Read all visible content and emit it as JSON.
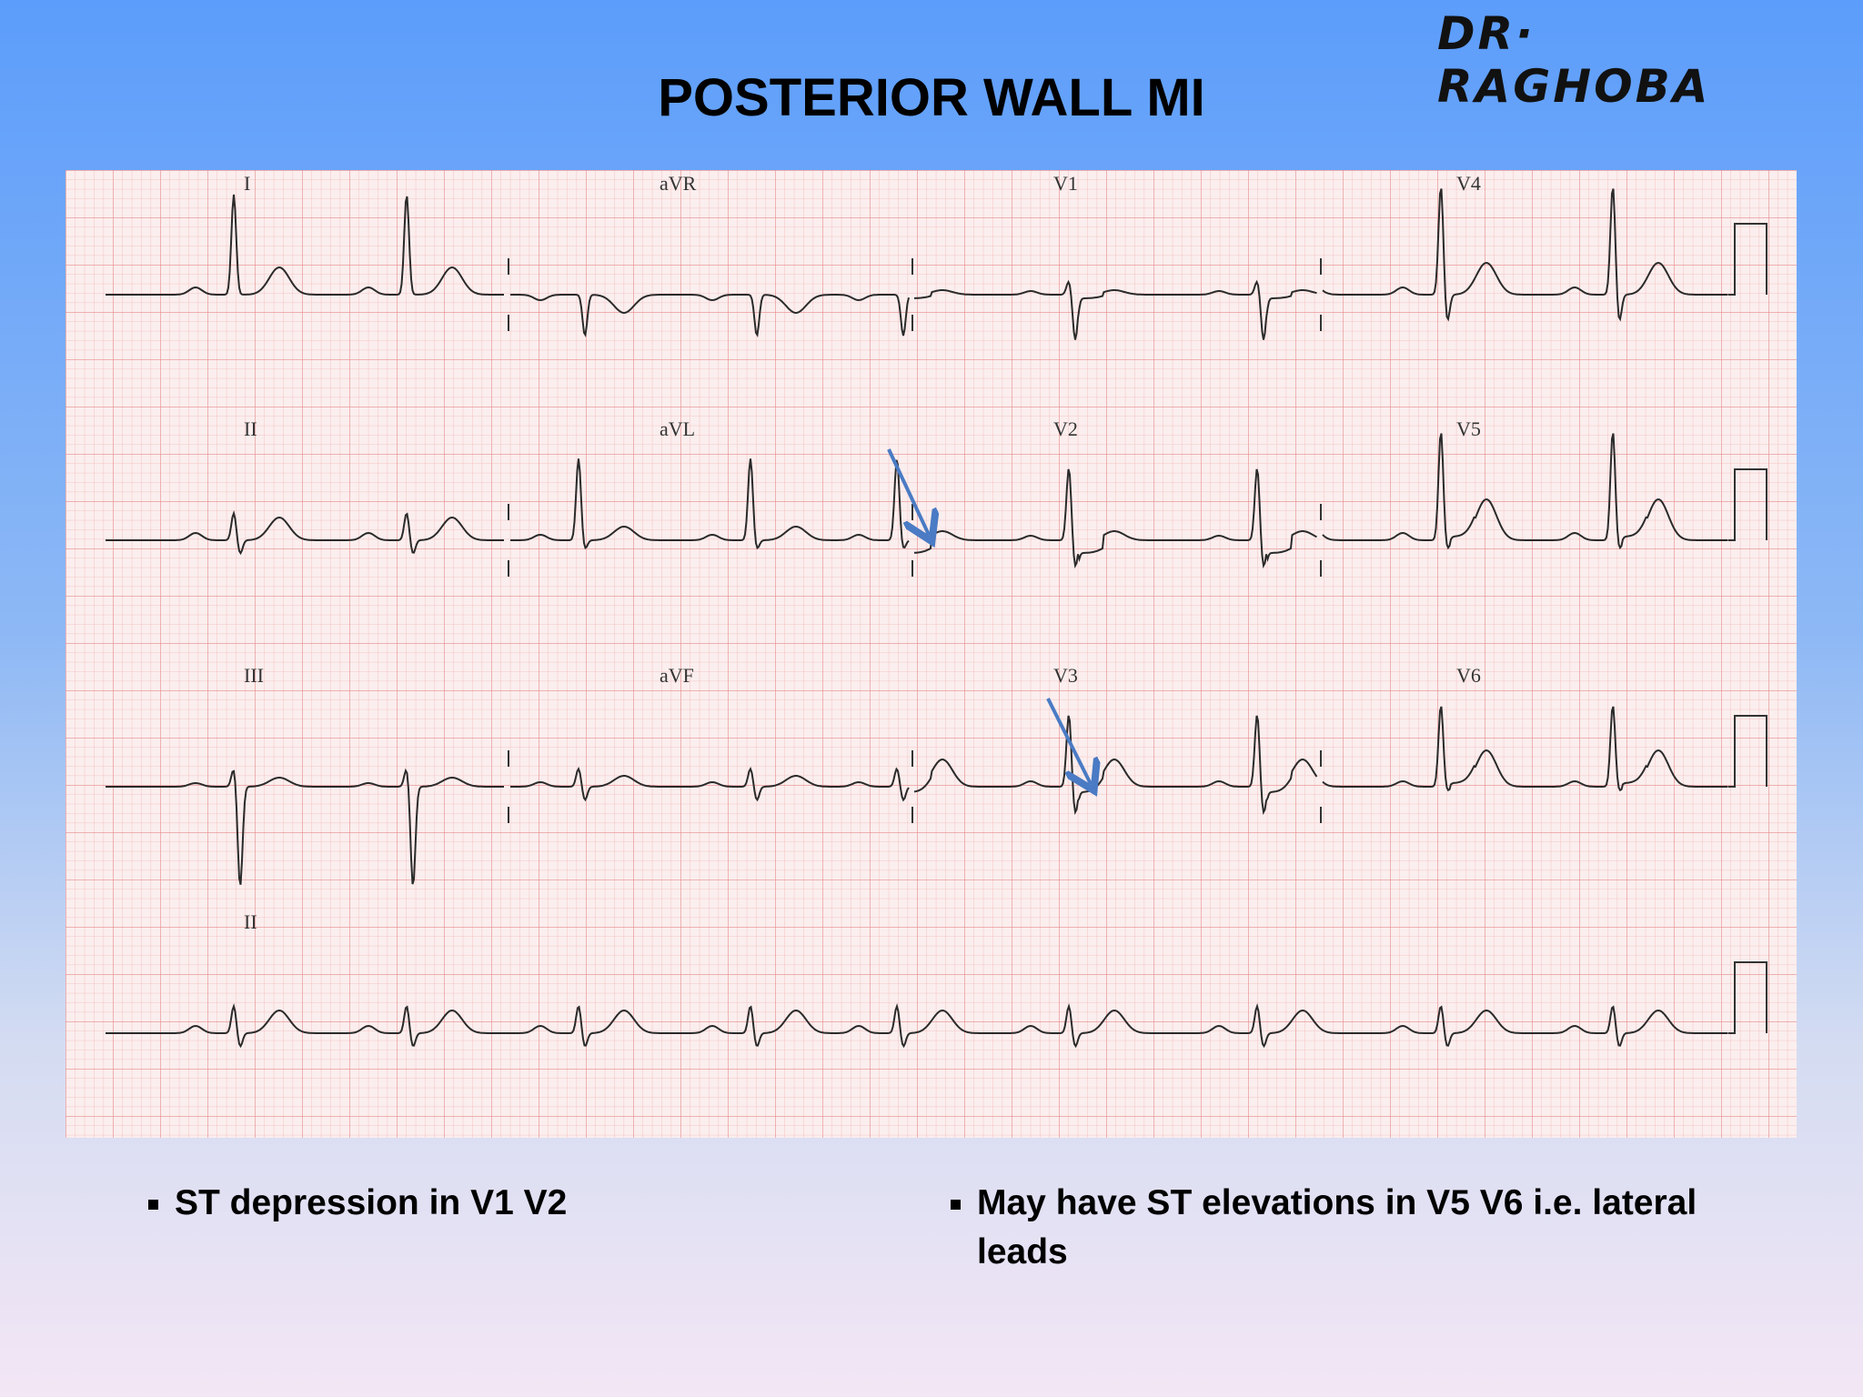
{
  "header": {
    "author": "DR· RAGHOBA",
    "title": "POSTERIOR WALL MI"
  },
  "ecg": {
    "leads": [
      "I",
      "aVR",
      "V1",
      "V4",
      "II",
      "aVL",
      "V2",
      "V5",
      "III",
      "aVF",
      "V3",
      "V6",
      "II"
    ]
  },
  "notes": [
    "ST depression in V1 V2",
    "May have ST elevations in V5 V6 i.e. lateral leads"
  ]
}
